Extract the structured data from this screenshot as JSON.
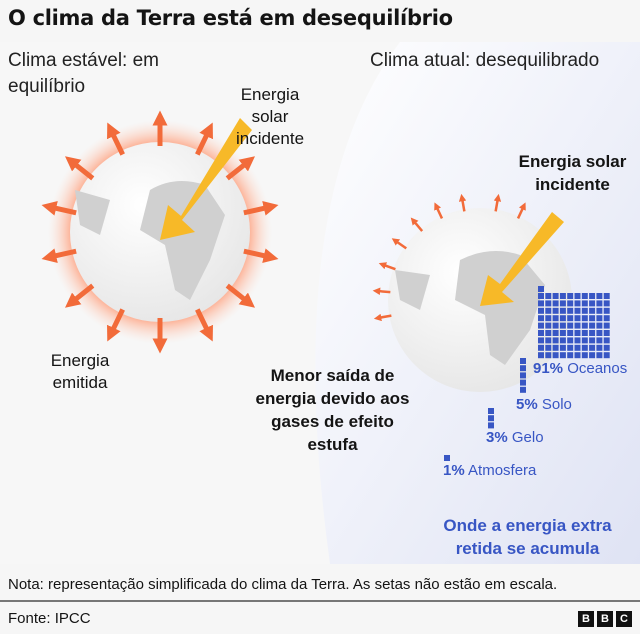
{
  "title": "O clima da Terra está em desequilíbrio",
  "left": {
    "heading": "Clima estável: em equilíbrio",
    "incoming": "Energia solar incidente",
    "emitted": "Energia emitida"
  },
  "right": {
    "heading": "Clima atual: desequilibrado",
    "incoming": "Energia solar incidente",
    "reduced": "Menor saída de energia devido aos gases de efeito estufa",
    "accum": "Onde a energia extra retida se acumula",
    "breakdown": [
      {
        "pct": "91%",
        "label": "Oceanos",
        "value": 91
      },
      {
        "pct": "5%",
        "label": "Solo",
        "value": 5
      },
      {
        "pct": "3%",
        "label": "Gelo",
        "value": 3
      },
      {
        "pct": "1%",
        "label": "Atmosfera",
        "value": 1
      }
    ]
  },
  "note": "Nota: representação simplificada do clima da Terra. As setas não estão em escala.",
  "source": "Fonte: IPCC",
  "logo": [
    "B",
    "B",
    "C"
  ],
  "colors": {
    "accent": "#3856c4",
    "arrow_out": "#f26b3a",
    "arrow_sun": "#f7b928"
  }
}
